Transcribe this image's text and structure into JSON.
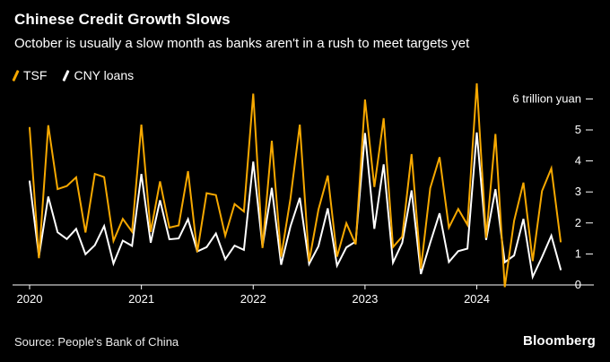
{
  "header": {
    "title": "Chinese Credit Growth Slows",
    "subtitle": "October is usually a slow month as banks aren't in a rush to meet targets yet"
  },
  "legend": [
    {
      "label": "TSF",
      "color": "#F6A800"
    },
    {
      "label": "CNY loans",
      "color": "#FFFFFF"
    }
  ],
  "footer": {
    "source": "Source: People's Bank of China",
    "brand": "Bloomberg"
  },
  "colors": {
    "background": "#000000",
    "axis": "#FFFFFF",
    "tsf": "#F6A800",
    "cny": "#FFFFFF"
  },
  "chart_data": {
    "type": "line",
    "title": "Chinese Credit Growth Slows",
    "unit_label": "6 trillion yuan",
    "ylim": [
      0,
      6
    ],
    "yticks": [
      5,
      4,
      3,
      2,
      1,
      0
    ],
    "x_start": {
      "year": 2020,
      "month": 1
    },
    "x_tick_years": [
      2020,
      2021,
      2022,
      2023,
      2024
    ],
    "frequency": "monthly",
    "series": [
      {
        "name": "TSF",
        "color": "#F6A800",
        "values": [
          5.07,
          0.86,
          5.15,
          3.09,
          3.19,
          3.47,
          1.69,
          3.58,
          3.48,
          1.42,
          2.13,
          1.72,
          5.17,
          1.71,
          3.34,
          1.85,
          1.92,
          3.67,
          1.06,
          2.96,
          2.9,
          1.59,
          2.61,
          2.37,
          6.17,
          1.19,
          4.65,
          0.91,
          2.79,
          5.17,
          0.76,
          2.43,
          3.53,
          0.91,
          1.99,
          1.31,
          5.98,
          3.16,
          5.38,
          1.22,
          1.56,
          4.22,
          0.53,
          3.12,
          4.12,
          1.85,
          2.45,
          1.94,
          6.5,
          1.52,
          4.87,
          -0.07,
          2.07,
          3.3,
          0.77,
          3.03,
          3.76,
          1.4
        ]
      },
      {
        "name": "CNY loans",
        "color": "#FFFFFF",
        "values": [
          3.34,
          0.91,
          2.85,
          1.7,
          1.48,
          1.81,
          0.99,
          1.28,
          1.9,
          0.69,
          1.43,
          1.26,
          3.58,
          1.36,
          2.73,
          1.47,
          1.5,
          2.12,
          1.08,
          1.22,
          1.66,
          0.83,
          1.27,
          1.13,
          3.98,
          1.23,
          3.13,
          0.65,
          1.89,
          2.81,
          0.68,
          1.25,
          2.47,
          0.62,
          1.21,
          1.4,
          4.9,
          1.81,
          3.89,
          0.72,
          1.36,
          3.05,
          0.35,
          1.36,
          2.31,
          0.74,
          1.09,
          1.17,
          4.92,
          1.45,
          3.09,
          0.73,
          0.95,
          2.13,
          0.26,
          0.9,
          1.59,
          0.5
        ]
      }
    ],
    "legend_position": "top-left",
    "grid": false
  }
}
